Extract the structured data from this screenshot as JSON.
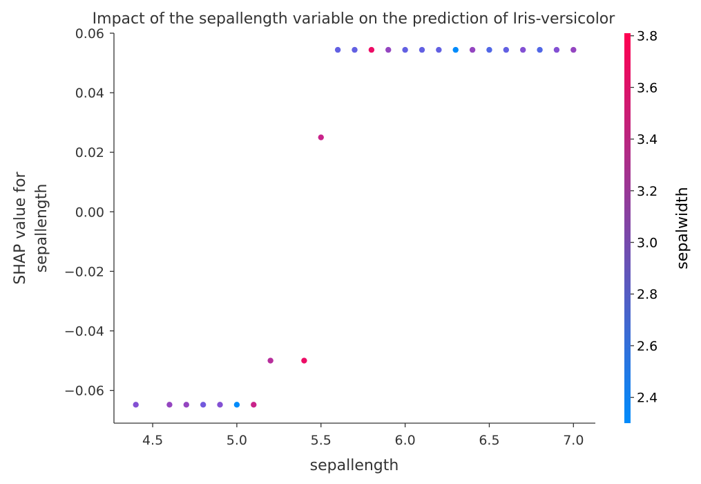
{
  "chart_data": {
    "type": "scatter",
    "title": "Impact of the sepallength variable on the prediction of Iris-versicolor",
    "xlabel": "sepallength",
    "ylabel_lines": [
      "SHAP value for",
      "sepallength"
    ],
    "xlim": [
      4.27,
      7.13
    ],
    "ylim": [
      -0.071,
      0.06
    ],
    "xticks": [
      4.5,
      5.0,
      5.5,
      6.0,
      6.5,
      7.0
    ],
    "xtick_labels": [
      "4.5",
      "5.0",
      "5.5",
      "6.0",
      "6.5",
      "7.0"
    ],
    "yticks": [
      0.06,
      0.04,
      0.02,
      0.0,
      -0.02,
      -0.04,
      -0.06
    ],
    "ytick_labels": [
      "0.06",
      "0.04",
      "0.02",
      "0.00",
      "−0.02",
      "−0.04",
      "−0.06"
    ],
    "colorbar": {
      "label": "sepalwidth",
      "range": [
        2.3,
        3.81
      ],
      "ticks": [
        2.4,
        2.6,
        2.8,
        3.0,
        3.2,
        3.4,
        3.6,
        3.8
      ],
      "tick_labels": [
        "2.4",
        "2.6",
        "2.8",
        "3.0",
        "3.2",
        "3.4",
        "3.6",
        "3.8"
      ],
      "colors": [
        "#008bfb",
        "#ff0051"
      ]
    },
    "grid": false,
    "points": [
      {
        "x": 4.4,
        "y": -0.0648,
        "c": 3.1
      },
      {
        "x": 4.6,
        "y": -0.0648,
        "c": 3.2
      },
      {
        "x": 4.7,
        "y": -0.0648,
        "c": 3.2
      },
      {
        "x": 4.8,
        "y": -0.0648,
        "c": 3.0
      },
      {
        "x": 4.9,
        "y": -0.0648,
        "c": 3.1
      },
      {
        "x": 5.0,
        "y": -0.0648,
        "c": 2.3
      },
      {
        "x": 5.1,
        "y": -0.0648,
        "c": 3.5
      },
      {
        "x": 5.2,
        "y": -0.05,
        "c": 3.4
      },
      {
        "x": 5.4,
        "y": -0.05,
        "c": 3.7
      },
      {
        "x": 5.5,
        "y": 0.025,
        "c": 3.5
      },
      {
        "x": 5.6,
        "y": 0.0544,
        "c": 2.9
      },
      {
        "x": 5.7,
        "y": 0.0544,
        "c": 2.9
      },
      {
        "x": 5.8,
        "y": 0.0544,
        "c": 3.7
      },
      {
        "x": 5.9,
        "y": 0.0544,
        "c": 3.2
      },
      {
        "x": 6.0,
        "y": 0.0544,
        "c": 2.9
      },
      {
        "x": 6.1,
        "y": 0.0544,
        "c": 2.9
      },
      {
        "x": 6.2,
        "y": 0.0544,
        "c": 2.9
      },
      {
        "x": 6.3,
        "y": 0.0544,
        "c": 2.3
      },
      {
        "x": 6.4,
        "y": 0.0544,
        "c": 3.2
      },
      {
        "x": 6.5,
        "y": 0.0544,
        "c": 2.8
      },
      {
        "x": 6.6,
        "y": 0.0544,
        "c": 2.9
      },
      {
        "x": 6.7,
        "y": 0.0544,
        "c": 3.1
      },
      {
        "x": 6.8,
        "y": 0.0544,
        "c": 2.8
      },
      {
        "x": 6.9,
        "y": 0.0544,
        "c": 3.1
      },
      {
        "x": 7.0,
        "y": 0.0544,
        "c": 3.2
      }
    ]
  }
}
